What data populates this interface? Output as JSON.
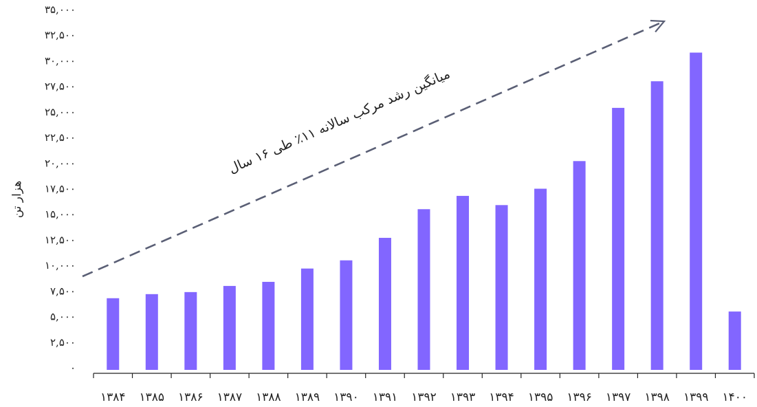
{
  "chart_data": {
    "type": "bar",
    "ylabel": "هزار تن",
    "ylim": [
      0,
      35000
    ],
    "y_ticks": [
      "٠",
      "٢,۵٠٠",
      "۵,٠٠٠",
      "٧,۵٠٠",
      "١٠,٠٠٠",
      "١٢,۵٠٠",
      "١۵,٠٠٠",
      "١٧,۵٠٠",
      "٢٠,٠٠٠",
      "٢٢,۵٠٠",
      "٢۵,٠٠٠",
      "٢٧,۵٠٠",
      "٣٠,٠٠٠",
      "٣٢,۵٠٠",
      "٣۵,٠٠٠"
    ],
    "categories": [
      "١٣٨۴",
      "١٣٨۵",
      "١٣٨۶",
      "١٣٨٧",
      "١٣٨٨",
      "١٣٨٩",
      "١٣٩٠",
      "١٣٩١",
      "١٣٩٢",
      "١٣٩٣",
      "١٣٩۴",
      "١٣٩۵",
      "١٣٩۶",
      "١٣٩٧",
      "١٣٩٨",
      "١٣٩٩",
      "١۴٠٠"
    ],
    "values": [
      6800,
      7200,
      7400,
      8000,
      8400,
      9700,
      10500,
      12700,
      15500,
      16800,
      15900,
      17500,
      20200,
      25400,
      28000,
      30800,
      5500
    ],
    "bar_color": "#8266ff",
    "trend_arrow_color": "#5a5f75",
    "annotation": "میانگین رشد مرکب سالانه ١١٪ طی ١۶ سال",
    "grid": false,
    "legend": "none"
  }
}
